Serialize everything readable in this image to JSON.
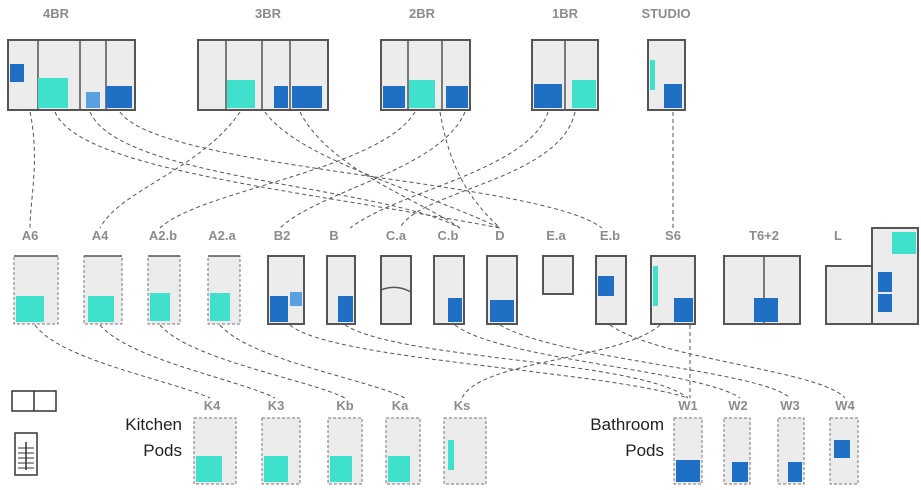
{
  "colors": {
    "kitchen": "#3fe0cc",
    "bathroom": "#1f6fc4",
    "room_fill": "#ececec",
    "wall": "#555555",
    "label_grey": "#8c8c8c",
    "label_dark": "#222222"
  },
  "units": {
    "labels": [
      "4BR",
      "3BR",
      "2BR",
      "1BR",
      "STUDIO"
    ]
  },
  "modules": {
    "labels": [
      "A6",
      "A4",
      "A2.b",
      "A2.a",
      "B2",
      "B",
      "C.a",
      "C.b",
      "D",
      "E.a",
      "E.b",
      "S6",
      "T6+2",
      "L"
    ]
  },
  "kitchen_pods": {
    "title_line1": "Kitchen",
    "title_line2": "Pods",
    "labels": [
      "K4",
      "K3",
      "Kb",
      "Ka",
      "Ks"
    ]
  },
  "bathroom_pods": {
    "title_line1": "Bathroom",
    "title_line2": "Pods",
    "labels": [
      "W1",
      "W2",
      "W3",
      "W4"
    ]
  },
  "legend": {
    "icons": [
      "two-module-plan-icon",
      "stair-section-icon"
    ]
  }
}
